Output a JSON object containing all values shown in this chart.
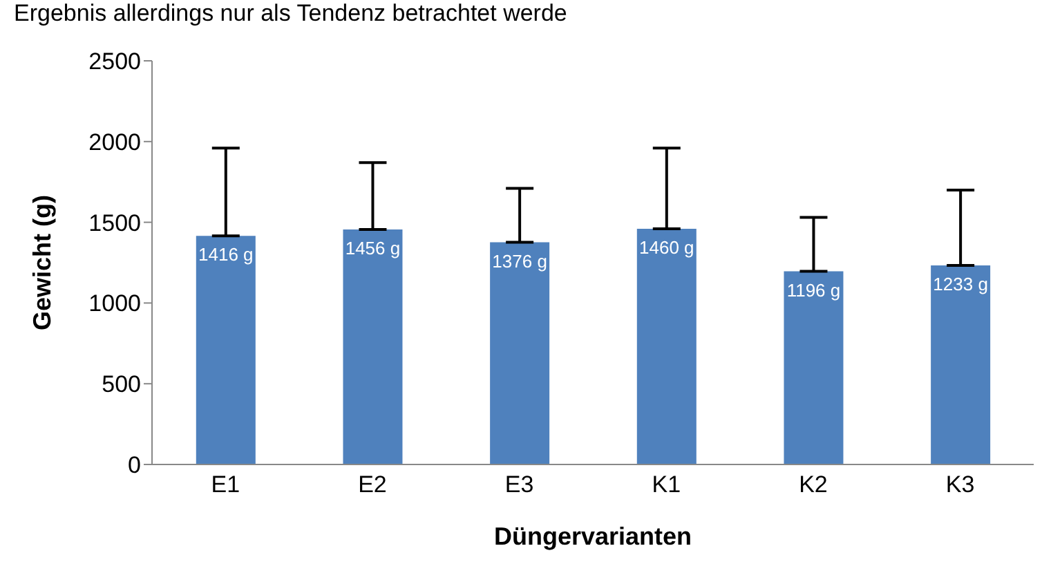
{
  "chart_data": {
    "type": "bar",
    "xlabel": "Düngervarianten",
    "ylabel": "Gewicht (g)",
    "annotations": [
      "Ergebnis allerdings nur als Tendenz betrachtet werde"
    ],
    "categories": [
      "E1",
      "E2",
      "E3",
      "K1",
      "K2",
      "K3"
    ],
    "values": [
      1416,
      1456,
      1376,
      1460,
      1196,
      1233
    ],
    "value_labels": [
      "1416 g",
      "1456 g",
      "1376 g",
      "1460 g",
      "1196 g",
      "1233 g"
    ],
    "errors": [
      [
        1416,
        1960
      ],
      [
        1456,
        1870
      ],
      [
        1376,
        1710
      ],
      [
        1460,
        1960
      ],
      [
        1196,
        1530
      ],
      [
        1233,
        1700
      ]
    ],
    "color": "#4f81bd",
    "ylim": [
      0,
      2500
    ],
    "yticks": [
      0,
      500,
      1000,
      1500,
      2000,
      2500
    ],
    "grid": false,
    "legend": false
  }
}
